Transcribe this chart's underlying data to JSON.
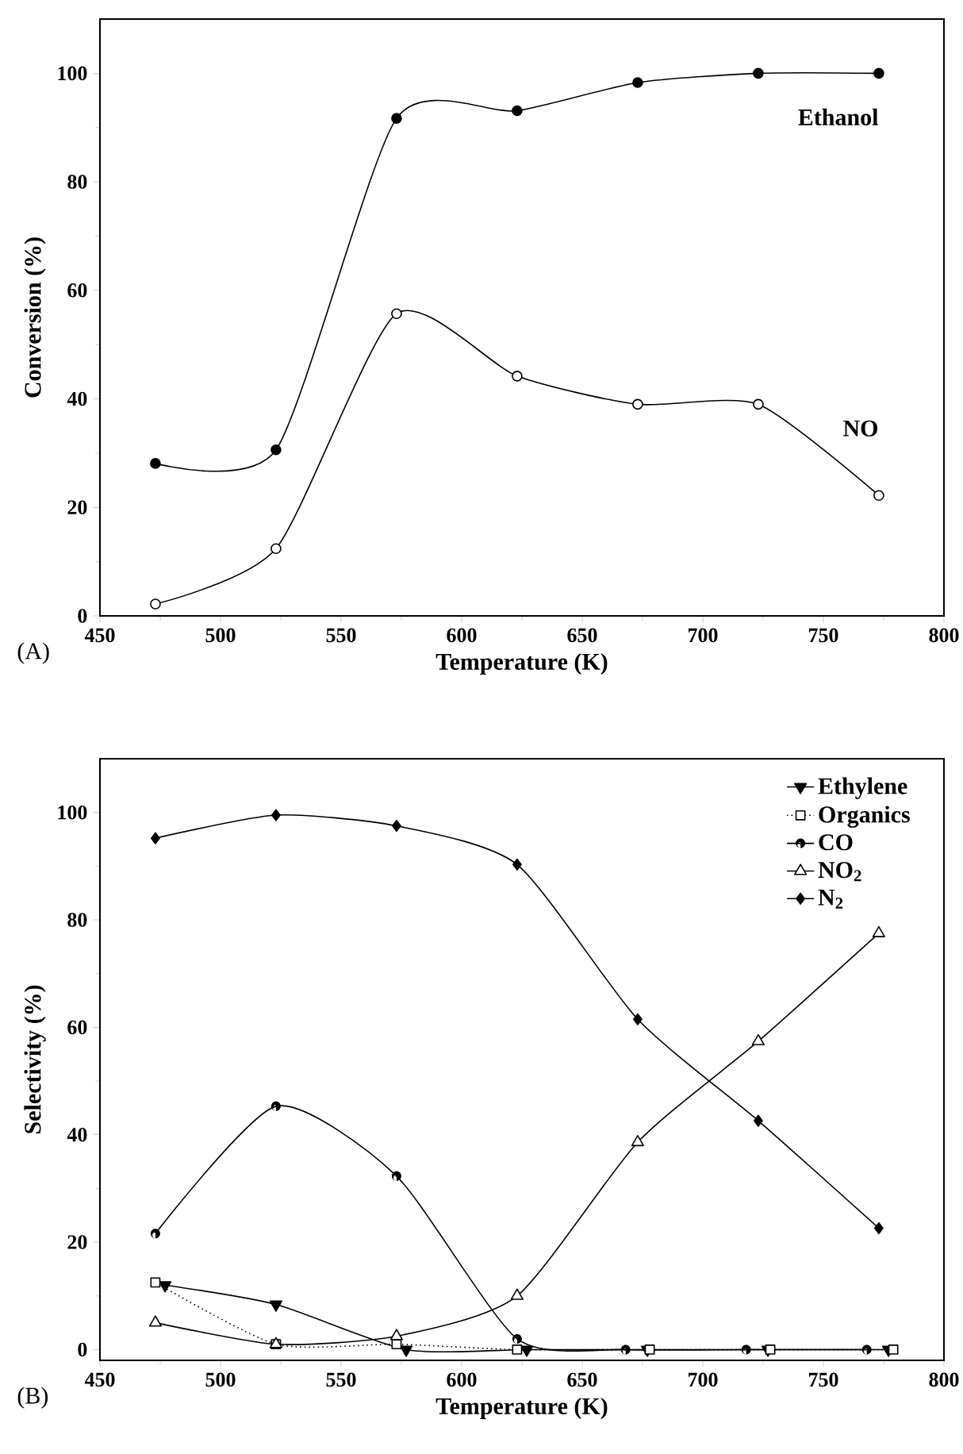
{
  "chart_data": [
    {
      "type": "line",
      "xlabel": "Temperature (K)",
      "ylabel": "Conversion (%)",
      "xlim": [
        450,
        800
      ],
      "xticks": [
        450,
        500,
        550,
        600,
        650,
        700,
        750,
        800
      ],
      "ylim": [
        0,
        110
      ],
      "yticks": [
        0,
        20,
        40,
        60,
        80,
        100
      ],
      "legend": false,
      "annotations": [
        "(A)"
      ],
      "series": [
        {
          "name": "Ethanol",
          "color": "#000000",
          "marker": "circle",
          "x": [
            473,
            523,
            573,
            623,
            673,
            723,
            773
          ],
          "values": [
            28.1,
            30.6,
            91.7,
            93.1,
            98.3,
            100,
            100
          ]
        },
        {
          "name": "NO",
          "color": "#000000",
          "marker": "circle",
          "x": [
            473,
            523,
            573,
            623,
            673,
            723,
            773
          ],
          "values": [
            2.2,
            12.4,
            55.7,
            44.2,
            39,
            39,
            22.2
          ]
        }
      ]
    },
    {
      "type": "line",
      "xlabel": "Temperature (K)",
      "ylabel": "Selectivity (%)",
      "xlim": [
        450,
        800
      ],
      "xticks": [
        450,
        500,
        550,
        600,
        650,
        700,
        750,
        800
      ],
      "ylim": [
        -2,
        110
      ],
      "yticks": [
        0,
        20,
        40,
        60,
        80,
        100
      ],
      "legend": "top right",
      "annotations": [
        "(B)"
      ],
      "series": [
        {
          "name": "Ethylene",
          "color": "#000000",
          "marker": "triangle",
          "line_style": "solid",
          "x": [
            477,
            523,
            577,
            627,
            677,
            727,
            777
          ],
          "values": [
            12,
            8.4,
            0,
            0,
            0,
            0,
            0
          ]
        },
        {
          "name": "Organics",
          "color": "#000000",
          "marker": "square",
          "line_style": "dotted",
          "x": [
            473,
            523,
            573,
            623,
            678,
            728,
            779
          ],
          "values": [
            12.5,
            1,
            1,
            0,
            0,
            0,
            0
          ]
        },
        {
          "name": "CO",
          "color": "#000000",
          "marker": "circle",
          "line_style": "solid",
          "x": [
            473,
            523,
            573,
            623,
            668,
            718,
            768
          ],
          "values": [
            21.6,
            45.3,
            32.3,
            2,
            0,
            0,
            0
          ]
        },
        {
          "name": "NO$_{2}$",
          "color": "#000000",
          "marker": "triangle",
          "line_style": "solid",
          "x": [
            473,
            523,
            573,
            623,
            673,
            723,
            773
          ],
          "values": [
            5,
            1,
            2.5,
            10,
            38.6,
            57.4,
            77.5
          ]
        },
        {
          "name": "N$_{2}$",
          "color": "#000000",
          "marker": "diamond",
          "line_style": "solid",
          "x": [
            473,
            523,
            573,
            623,
            673,
            723,
            773
          ],
          "values": [
            95.2,
            99.5,
            97.5,
            90.3,
            61.5,
            42.6,
            22.6
          ]
        }
      ]
    }
  ]
}
